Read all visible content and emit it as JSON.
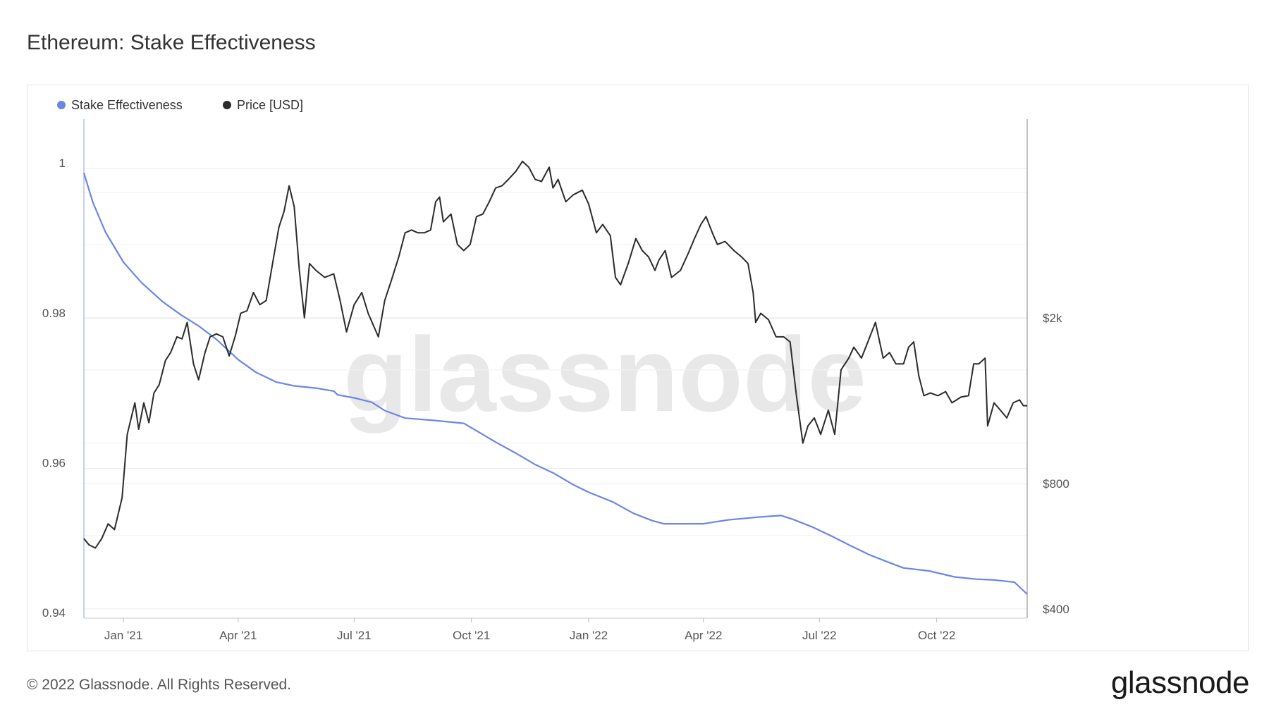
{
  "header": {
    "title": "Ethereum: Stake Effectiveness"
  },
  "footer": {
    "copyright": "© 2022 Glassnode. All Rights Reserved.",
    "logo": "glassnode"
  },
  "watermark": "glassnode",
  "chart_data": {
    "type": "line",
    "title": "Ethereum: Stake Effectiveness",
    "x_range": [
      "2020-12-01",
      "2022-12-11"
    ],
    "x_ticks": [
      {
        "date": "2021-01-01",
        "label": "Jan '21"
      },
      {
        "date": "2021-04-01",
        "label": "Apr '21"
      },
      {
        "date": "2021-07-01",
        "label": "Jul '21"
      },
      {
        "date": "2021-10-01",
        "label": "Oct '21"
      },
      {
        "date": "2022-01-01",
        "label": "Jan '22"
      },
      {
        "date": "2022-04-01",
        "label": "Apr '22"
      },
      {
        "date": "2022-07-01",
        "label": "Jul '22"
      },
      {
        "date": "2022-10-01",
        "label": "Oct '22"
      }
    ],
    "y_left": {
      "range": [
        0.94,
        1.0066
      ],
      "ticks": [
        {
          "value": 0.94,
          "label": "0.94"
        },
        {
          "value": 0.96,
          "label": "0.96"
        },
        {
          "value": 0.98,
          "label": "0.98"
        },
        {
          "value": 1.0,
          "label": "1"
        }
      ]
    },
    "y_right": {
      "scale": "log",
      "range": [
        380,
        6000
      ],
      "ticks": [
        {
          "value": 400,
          "label": "$400"
        },
        {
          "value": 800,
          "label": "$800"
        },
        {
          "value": 2000,
          "label": "$2k"
        }
      ]
    },
    "grid": true,
    "legend": {
      "placement": "top-left"
    },
    "series": [
      {
        "name": "Stake Effectiveness",
        "axis": "left",
        "color": "#6b86e6",
        "points": [
          [
            "2020-12-01",
            0.9994
          ],
          [
            "2020-12-08",
            0.9955
          ],
          [
            "2020-12-18",
            0.9915
          ],
          [
            "2021-01-01",
            0.9875
          ],
          [
            "2021-01-15",
            0.9848
          ],
          [
            "2021-02-01",
            0.9822
          ],
          [
            "2021-02-15",
            0.9805
          ],
          [
            "2021-03-01",
            0.979
          ],
          [
            "2021-03-15",
            0.9772
          ],
          [
            "2021-04-01",
            0.9745
          ],
          [
            "2021-04-15",
            0.9728
          ],
          [
            "2021-05-01",
            0.9715
          ],
          [
            "2021-05-15",
            0.971
          ],
          [
            "2021-06-01",
            0.9707
          ],
          [
            "2021-06-15",
            0.9703
          ],
          [
            "2021-06-18",
            0.9698
          ],
          [
            "2021-07-01",
            0.9694
          ],
          [
            "2021-07-15",
            0.9688
          ],
          [
            "2021-07-25",
            0.9677
          ],
          [
            "2021-08-10",
            0.9667
          ],
          [
            "2021-09-01",
            0.9664
          ],
          [
            "2021-09-25",
            0.966
          ],
          [
            "2021-10-05",
            0.965
          ],
          [
            "2021-10-20",
            0.9635
          ],
          [
            "2021-11-05",
            0.962
          ],
          [
            "2021-11-20",
            0.9605
          ],
          [
            "2021-12-05",
            0.9593
          ],
          [
            "2021-12-20",
            0.9578
          ],
          [
            "2022-01-01",
            0.9568
          ],
          [
            "2022-01-20",
            0.9555
          ],
          [
            "2022-02-05",
            0.954
          ],
          [
            "2022-02-20",
            0.953
          ],
          [
            "2022-03-01",
            0.9526
          ],
          [
            "2022-03-15",
            0.9526
          ],
          [
            "2022-04-01",
            0.9526
          ],
          [
            "2022-04-20",
            0.9531
          ],
          [
            "2022-05-15",
            0.9535
          ],
          [
            "2022-06-01",
            0.9537
          ],
          [
            "2022-06-10",
            0.9532
          ],
          [
            "2022-06-25",
            0.9522
          ],
          [
            "2022-07-10",
            0.951
          ],
          [
            "2022-07-25",
            0.9497
          ],
          [
            "2022-08-10",
            0.9484
          ],
          [
            "2022-08-25",
            0.9474
          ],
          [
            "2022-09-05",
            0.9467
          ],
          [
            "2022-09-25",
            0.9463
          ],
          [
            "2022-10-15",
            0.9455
          ],
          [
            "2022-11-01",
            0.9452
          ],
          [
            "2022-11-15",
            0.9451
          ],
          [
            "2022-12-01",
            0.9448
          ],
          [
            "2022-12-11",
            0.9432
          ]
        ]
      },
      {
        "name": "Price [USD]",
        "axis": "right",
        "color": "#2b2b2b",
        "points": [
          [
            "2020-12-01",
            590
          ],
          [
            "2020-12-05",
            570
          ],
          [
            "2020-12-10",
            560
          ],
          [
            "2020-12-15",
            590
          ],
          [
            "2020-12-20",
            640
          ],
          [
            "2020-12-25",
            620
          ],
          [
            "2020-12-31",
            740
          ],
          [
            "2021-01-04",
            1050
          ],
          [
            "2021-01-10",
            1250
          ],
          [
            "2021-01-13",
            1080
          ],
          [
            "2021-01-17",
            1250
          ],
          [
            "2021-01-21",
            1120
          ],
          [
            "2021-01-25",
            1320
          ],
          [
            "2021-01-29",
            1380
          ],
          [
            "2021-02-03",
            1580
          ],
          [
            "2021-02-07",
            1650
          ],
          [
            "2021-02-12",
            1800
          ],
          [
            "2021-02-16",
            1780
          ],
          [
            "2021-02-20",
            1950
          ],
          [
            "2021-02-25",
            1550
          ],
          [
            "2021-03-01",
            1420
          ],
          [
            "2021-03-06",
            1650
          ],
          [
            "2021-03-10",
            1800
          ],
          [
            "2021-03-15",
            1830
          ],
          [
            "2021-03-20",
            1800
          ],
          [
            "2021-03-25",
            1620
          ],
          [
            "2021-03-30",
            1820
          ],
          [
            "2021-04-03",
            2050
          ],
          [
            "2021-04-08",
            2080
          ],
          [
            "2021-04-13",
            2300
          ],
          [
            "2021-04-18",
            2150
          ],
          [
            "2021-04-23",
            2200
          ],
          [
            "2021-04-28",
            2700
          ],
          [
            "2021-05-03",
            3300
          ],
          [
            "2021-05-07",
            3600
          ],
          [
            "2021-05-11",
            4150
          ],
          [
            "2021-05-15",
            3700
          ],
          [
            "2021-05-19",
            2600
          ],
          [
            "2021-05-23",
            2000
          ],
          [
            "2021-05-27",
            2700
          ],
          [
            "2021-06-01",
            2600
          ],
          [
            "2021-06-08",
            2500
          ],
          [
            "2021-06-15",
            2550
          ],
          [
            "2021-06-20",
            2200
          ],
          [
            "2021-06-25",
            1850
          ],
          [
            "2021-07-01",
            2150
          ],
          [
            "2021-07-07",
            2300
          ],
          [
            "2021-07-12",
            2050
          ],
          [
            "2021-07-20",
            1800
          ],
          [
            "2021-07-25",
            2200
          ],
          [
            "2021-07-30",
            2450
          ],
          [
            "2021-08-05",
            2800
          ],
          [
            "2021-08-10",
            3200
          ],
          [
            "2021-08-15",
            3250
          ],
          [
            "2021-08-20",
            3200
          ],
          [
            "2021-08-25",
            3200
          ],
          [
            "2021-08-30",
            3250
          ],
          [
            "2021-09-03",
            3800
          ],
          [
            "2021-09-06",
            3900
          ],
          [
            "2021-09-09",
            3400
          ],
          [
            "2021-09-15",
            3550
          ],
          [
            "2021-09-20",
            3000
          ],
          [
            "2021-09-25",
            2900
          ],
          [
            "2021-09-30",
            3000
          ],
          [
            "2021-10-05",
            3500
          ],
          [
            "2021-10-10",
            3550
          ],
          [
            "2021-10-15",
            3800
          ],
          [
            "2021-10-20",
            4100
          ],
          [
            "2021-10-25",
            4150
          ],
          [
            "2021-10-30",
            4300
          ],
          [
            "2021-11-05",
            4500
          ],
          [
            "2021-11-10",
            4750
          ],
          [
            "2021-11-15",
            4600
          ],
          [
            "2021-11-20",
            4300
          ],
          [
            "2021-11-25",
            4250
          ],
          [
            "2021-12-01",
            4600
          ],
          [
            "2021-12-04",
            4100
          ],
          [
            "2021-12-08",
            4300
          ],
          [
            "2021-12-14",
            3800
          ],
          [
            "2021-12-20",
            3950
          ],
          [
            "2021-12-27",
            4050
          ],
          [
            "2022-01-01",
            3750
          ],
          [
            "2022-01-07",
            3200
          ],
          [
            "2022-01-12",
            3350
          ],
          [
            "2022-01-18",
            3150
          ],
          [
            "2022-01-22",
            2500
          ],
          [
            "2022-01-26",
            2400
          ],
          [
            "2022-02-01",
            2700
          ],
          [
            "2022-02-07",
            3100
          ],
          [
            "2022-02-12",
            2900
          ],
          [
            "2022-02-17",
            2800
          ],
          [
            "2022-02-22",
            2600
          ],
          [
            "2022-02-25",
            2750
          ],
          [
            "2022-03-02",
            2900
          ],
          [
            "2022-03-07",
            2500
          ],
          [
            "2022-03-14",
            2600
          ],
          [
            "2022-03-20",
            2850
          ],
          [
            "2022-03-25",
            3100
          ],
          [
            "2022-03-30",
            3350
          ],
          [
            "2022-04-03",
            3500
          ],
          [
            "2022-04-08",
            3200
          ],
          [
            "2022-04-12",
            3000
          ],
          [
            "2022-04-18",
            3050
          ],
          [
            "2022-04-25",
            2900
          ],
          [
            "2022-05-01",
            2800
          ],
          [
            "2022-05-06",
            2700
          ],
          [
            "2022-05-10",
            2300
          ],
          [
            "2022-05-12",
            1950
          ],
          [
            "2022-05-16",
            2050
          ],
          [
            "2022-05-22",
            1980
          ],
          [
            "2022-05-28",
            1800
          ],
          [
            "2022-06-03",
            1800
          ],
          [
            "2022-06-08",
            1750
          ],
          [
            "2022-06-13",
            1300
          ],
          [
            "2022-06-18",
            1000
          ],
          [
            "2022-06-22",
            1100
          ],
          [
            "2022-06-27",
            1150
          ],
          [
            "2022-07-02",
            1050
          ],
          [
            "2022-07-08",
            1200
          ],
          [
            "2022-07-13",
            1050
          ],
          [
            "2022-07-18",
            1500
          ],
          [
            "2022-07-24",
            1600
          ],
          [
            "2022-07-28",
            1700
          ],
          [
            "2022-08-03",
            1600
          ],
          [
            "2022-08-08",
            1750
          ],
          [
            "2022-08-14",
            1950
          ],
          [
            "2022-08-20",
            1600
          ],
          [
            "2022-08-25",
            1650
          ],
          [
            "2022-08-30",
            1550
          ],
          [
            "2022-09-05",
            1550
          ],
          [
            "2022-09-09",
            1700
          ],
          [
            "2022-09-13",
            1750
          ],
          [
            "2022-09-17",
            1450
          ],
          [
            "2022-09-21",
            1300
          ],
          [
            "2022-09-26",
            1320
          ],
          [
            "2022-10-02",
            1300
          ],
          [
            "2022-10-08",
            1330
          ],
          [
            "2022-10-13",
            1250
          ],
          [
            "2022-10-20",
            1290
          ],
          [
            "2022-10-26",
            1300
          ],
          [
            "2022-10-30",
            1550
          ],
          [
            "2022-11-03",
            1550
          ],
          [
            "2022-11-08",
            1600
          ],
          [
            "2022-11-10",
            1100
          ],
          [
            "2022-11-15",
            1250
          ],
          [
            "2022-11-20",
            1200
          ],
          [
            "2022-11-25",
            1150
          ],
          [
            "2022-11-30",
            1250
          ],
          [
            "2022-12-05",
            1270
          ],
          [
            "2022-12-08",
            1230
          ],
          [
            "2022-12-11",
            1230
          ]
        ]
      }
    ]
  }
}
